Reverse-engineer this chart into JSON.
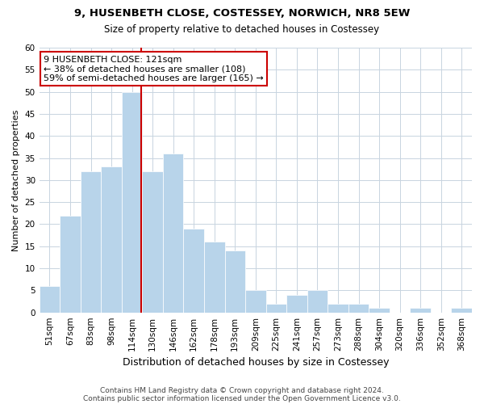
{
  "title": "9, HUSENBETH CLOSE, COSTESSEY, NORWICH, NR8 5EW",
  "subtitle": "Size of property relative to detached houses in Costessey",
  "xlabel": "Distribution of detached houses by size in Costessey",
  "ylabel": "Number of detached properties",
  "bar_color": "#b8d4ea",
  "bar_edgecolor": "#ffffff",
  "bins": [
    "51sqm",
    "67sqm",
    "83sqm",
    "98sqm",
    "114sqm",
    "130sqm",
    "146sqm",
    "162sqm",
    "178sqm",
    "193sqm",
    "209sqm",
    "225sqm",
    "241sqm",
    "257sqm",
    "273sqm",
    "288sqm",
    "304sqm",
    "320sqm",
    "336sqm",
    "352sqm",
    "368sqm"
  ],
  "counts": [
    6,
    22,
    32,
    33,
    50,
    32,
    36,
    19,
    16,
    14,
    5,
    2,
    4,
    5,
    2,
    2,
    1,
    0,
    1,
    0,
    1
  ],
  "ylim": [
    0,
    60
  ],
  "yticks": [
    0,
    5,
    10,
    15,
    20,
    25,
    30,
    35,
    40,
    45,
    50,
    55,
    60
  ],
  "property_bin_index": 4,
  "property_line_color": "#cc0000",
  "annotation_text": "9 HUSENBETH CLOSE: 121sqm\n← 38% of detached houses are smaller (108)\n59% of semi-detached houses are larger (165) →",
  "annotation_box_edgecolor": "#cc0000",
  "footer_line1": "Contains HM Land Registry data © Crown copyright and database right 2024.",
  "footer_line2": "Contains public sector information licensed under the Open Government Licence v3.0.",
  "background_color": "#ffffff",
  "grid_color": "#c8d4e0"
}
